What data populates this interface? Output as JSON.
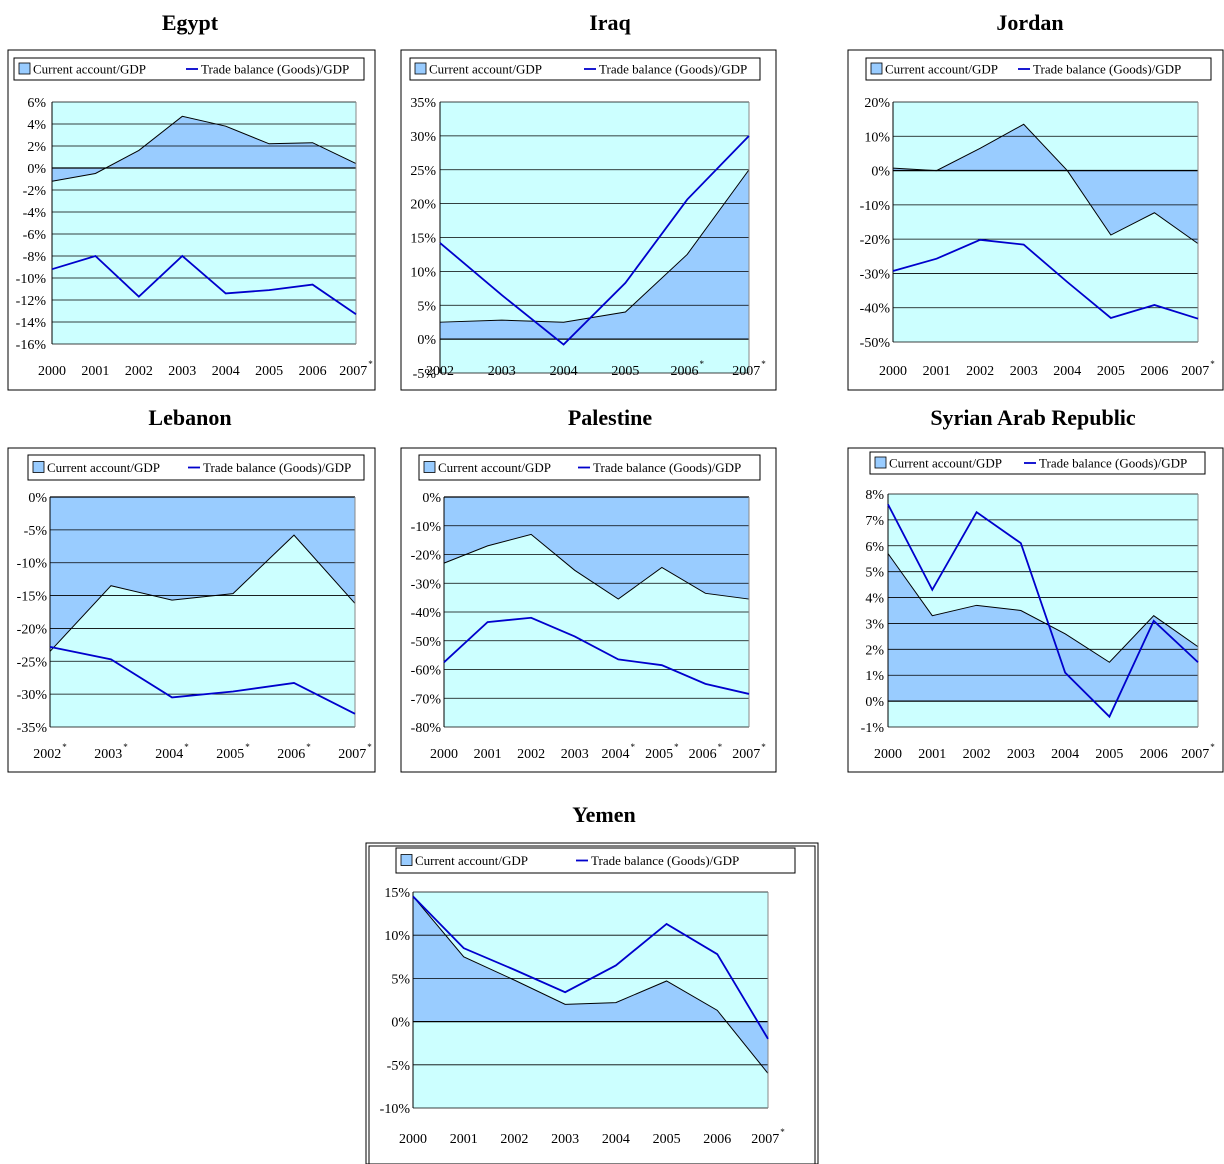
{
  "colors": {
    "plot_bg": "#ccffff",
    "area_fill": "#99ccff",
    "area_stroke": "#000000",
    "trade_line": "#0000cc",
    "grid": "#000000"
  },
  "chart_data": [
    {
      "type": "area",
      "title": "Egypt",
      "legend": [
        "Current account/GDP",
        "Trade balance (Goods)/GDP"
      ],
      "categories": [
        "2000",
        "2001",
        "2002",
        "2003",
        "2004",
        "2005",
        "2006",
        "2007"
      ],
      "category_marks": [
        "",
        "",
        "",
        "",
        "",
        "",
        "",
        "*"
      ],
      "ylim": [
        -16,
        6
      ],
      "yticks": [
        6,
        4,
        2,
        0,
        -2,
        -4,
        -6,
        -8,
        -10,
        -12,
        -14,
        -16
      ],
      "ytick_labels": [
        "6%",
        "4%",
        "2%",
        "0%",
        "-2%",
        "-4%",
        "-6%",
        "-8%",
        "-10%",
        "-12%",
        "-14%",
        "-16%"
      ],
      "series": [
        {
          "name": "Current account/GDP",
          "kind": "area",
          "values": [
            -1.2,
            -0.5,
            1.6,
            4.7,
            3.8,
            2.2,
            2.3,
            0.4
          ]
        },
        {
          "name": "Trade balance (Goods)/GDP",
          "kind": "line",
          "values": [
            -9.2,
            -8.0,
            -11.7,
            -8.0,
            -11.4,
            -11.1,
            -10.6,
            -13.3
          ]
        }
      ]
    },
    {
      "type": "area",
      "title": "Iraq",
      "legend": [
        "Current account/GDP",
        "Trade balance (Goods)/GDP"
      ],
      "categories": [
        "2002",
        "2003",
        "2004",
        "2005",
        "2006",
        "2007"
      ],
      "category_marks": [
        "",
        "",
        "",
        "",
        "*",
        "*"
      ],
      "ylim": [
        -5,
        35
      ],
      "yticks": [
        35,
        30,
        25,
        20,
        15,
        10,
        5,
        0,
        -5
      ],
      "ytick_labels": [
        "35%",
        "30%",
        "25%",
        "20%",
        "15%",
        "10%",
        "5%",
        "0%",
        "-5%"
      ],
      "series": [
        {
          "name": "Current account/GDP",
          "kind": "area",
          "values": [
            2.5,
            2.8,
            2.5,
            4.0,
            12.5,
            25.0
          ]
        },
        {
          "name": "Trade balance (Goods)/GDP",
          "kind": "line",
          "values": [
            14.2,
            6.5,
            -0.8,
            8.3,
            20.6,
            30.0
          ]
        }
      ]
    },
    {
      "type": "area",
      "title": "Jordan",
      "legend": [
        "Current account/GDP",
        "Trade balance (Goods)/GDP"
      ],
      "categories": [
        "2000",
        "2001",
        "2002",
        "2003",
        "2004",
        "2005",
        "2006",
        "2007"
      ],
      "category_marks": [
        "",
        "",
        "",
        "",
        "",
        "",
        "",
        "*"
      ],
      "ylim": [
        -50,
        20
      ],
      "yticks": [
        20,
        10,
        0,
        -10,
        -20,
        -30,
        -40,
        -50
      ],
      "ytick_labels": [
        "20%",
        "10%",
        "0%",
        "-10%",
        "-20%",
        "-30%",
        "-40%",
        "-50%"
      ],
      "series": [
        {
          "name": "Current account/GDP",
          "kind": "area",
          "values": [
            0.7,
            0,
            6.5,
            13.5,
            0,
            -18.8,
            -12.3,
            -21.3
          ]
        },
        {
          "name": "Trade balance (Goods)/GDP",
          "kind": "line",
          "values": [
            -29.3,
            -25.7,
            -20.2,
            -21.6,
            -32.5,
            -43.0,
            -39.2,
            -43.2
          ]
        }
      ]
    },
    {
      "type": "area",
      "title": "Lebanon",
      "legend": [
        "Current account/GDP",
        "Trade balance (Goods)/GDP"
      ],
      "categories": [
        "2002",
        "2003",
        "2004",
        "2005",
        "2006",
        "2007"
      ],
      "category_marks": [
        "*",
        "*",
        "*",
        "*",
        "*",
        "*"
      ],
      "ylim": [
        -35,
        0
      ],
      "yticks": [
        0,
        -5,
        -10,
        -15,
        -20,
        -25,
        -30,
        -35
      ],
      "ytick_labels": [
        "0%",
        "-5%",
        "-10%",
        "-15%",
        "-20%",
        "-25%",
        "-30%",
        "-35%"
      ],
      "series": [
        {
          "name": "Current account/GDP",
          "kind": "area",
          "values": [
            -23.5,
            -13.5,
            -15.7,
            -14.7,
            -5.8,
            -16.2
          ]
        },
        {
          "name": "Trade balance (Goods)/GDP",
          "kind": "line",
          "values": [
            -22.8,
            -24.7,
            -30.5,
            -29.6,
            -28.3,
            -33.0
          ]
        }
      ]
    },
    {
      "type": "area",
      "title": "Palestine",
      "legend": [
        "Current account/GDP",
        "Trade balance (Goods)/GDP"
      ],
      "categories": [
        "2000",
        "2001",
        "2002",
        "2003",
        "2004",
        "2005",
        "2006",
        "2007"
      ],
      "category_marks": [
        "",
        "",
        "",
        "",
        "*",
        "*",
        "*",
        "*"
      ],
      "ylim": [
        -80,
        0
      ],
      "yticks": [
        0,
        -10,
        -20,
        -30,
        -40,
        -50,
        -60,
        -70,
        -80
      ],
      "ytick_labels": [
        "0%",
        "-10%",
        "-20%",
        "-30%",
        "-40%",
        "-50%",
        "-60%",
        "-70%",
        "-80%"
      ],
      "series": [
        {
          "name": "Current account/GDP",
          "kind": "area",
          "values": [
            -23.0,
            -17.0,
            -13.0,
            -25.5,
            -35.5,
            -24.5,
            -33.5,
            -35.5
          ]
        },
        {
          "name": "Trade balance (Goods)/GDP",
          "kind": "line",
          "values": [
            -57.5,
            -43.5,
            -42.0,
            -48.5,
            -56.5,
            -58.5,
            -65.0,
            -68.5
          ]
        }
      ]
    },
    {
      "type": "area",
      "title": "Syrian Arab Republic",
      "legend": [
        "Current account/GDP",
        "Trade balance (Goods)/GDP"
      ],
      "categories": [
        "2000",
        "2001",
        "2002",
        "2003",
        "2004",
        "2005",
        "2006",
        "2007"
      ],
      "category_marks": [
        "",
        "",
        "",
        "",
        "",
        "",
        "",
        "*"
      ],
      "ylim": [
        -1,
        8
      ],
      "yticks": [
        8,
        7,
        6,
        5,
        4,
        3,
        2,
        1,
        0,
        -1
      ],
      "ytick_labels": [
        "8%",
        "7%",
        "6%",
        "5%",
        "4%",
        "3%",
        "2%",
        "1%",
        "0%",
        "-1%"
      ],
      "series": [
        {
          "name": "Current account/GDP",
          "kind": "area",
          "values": [
            5.7,
            3.3,
            3.7,
            3.5,
            2.6,
            1.5,
            3.3,
            2.1
          ]
        },
        {
          "name": "Trade balance (Goods)/GDP",
          "kind": "line",
          "values": [
            7.6,
            4.3,
            7.3,
            6.1,
            1.1,
            -0.6,
            3.1,
            1.5
          ]
        }
      ]
    },
    {
      "type": "area",
      "title": "Yemen",
      "legend": [
        "Current account/GDP",
        "Trade balance (Goods)/GDP"
      ],
      "categories": [
        "2000",
        "2001",
        "2002",
        "2003",
        "2004",
        "2005",
        "2006",
        "2007"
      ],
      "category_marks": [
        "",
        "",
        "",
        "",
        "",
        "",
        "",
        "*"
      ],
      "ylim": [
        -10,
        15
      ],
      "yticks": [
        15,
        10,
        5,
        0,
        -5,
        -10
      ],
      "ytick_labels": [
        "15%",
        "10%",
        "5%",
        "0%",
        "-5%",
        "-10%"
      ],
      "series": [
        {
          "name": "Current account/GDP",
          "kind": "area",
          "values": [
            14.5,
            7.5,
            4.8,
            2.0,
            2.2,
            4.7,
            1.3,
            -6.0
          ]
        },
        {
          "name": "Trade balance (Goods)/GDP",
          "kind": "line",
          "values": [
            14.5,
            8.5,
            6.0,
            3.4,
            6.5,
            11.3,
            7.8,
            -2.0
          ]
        }
      ]
    }
  ]
}
